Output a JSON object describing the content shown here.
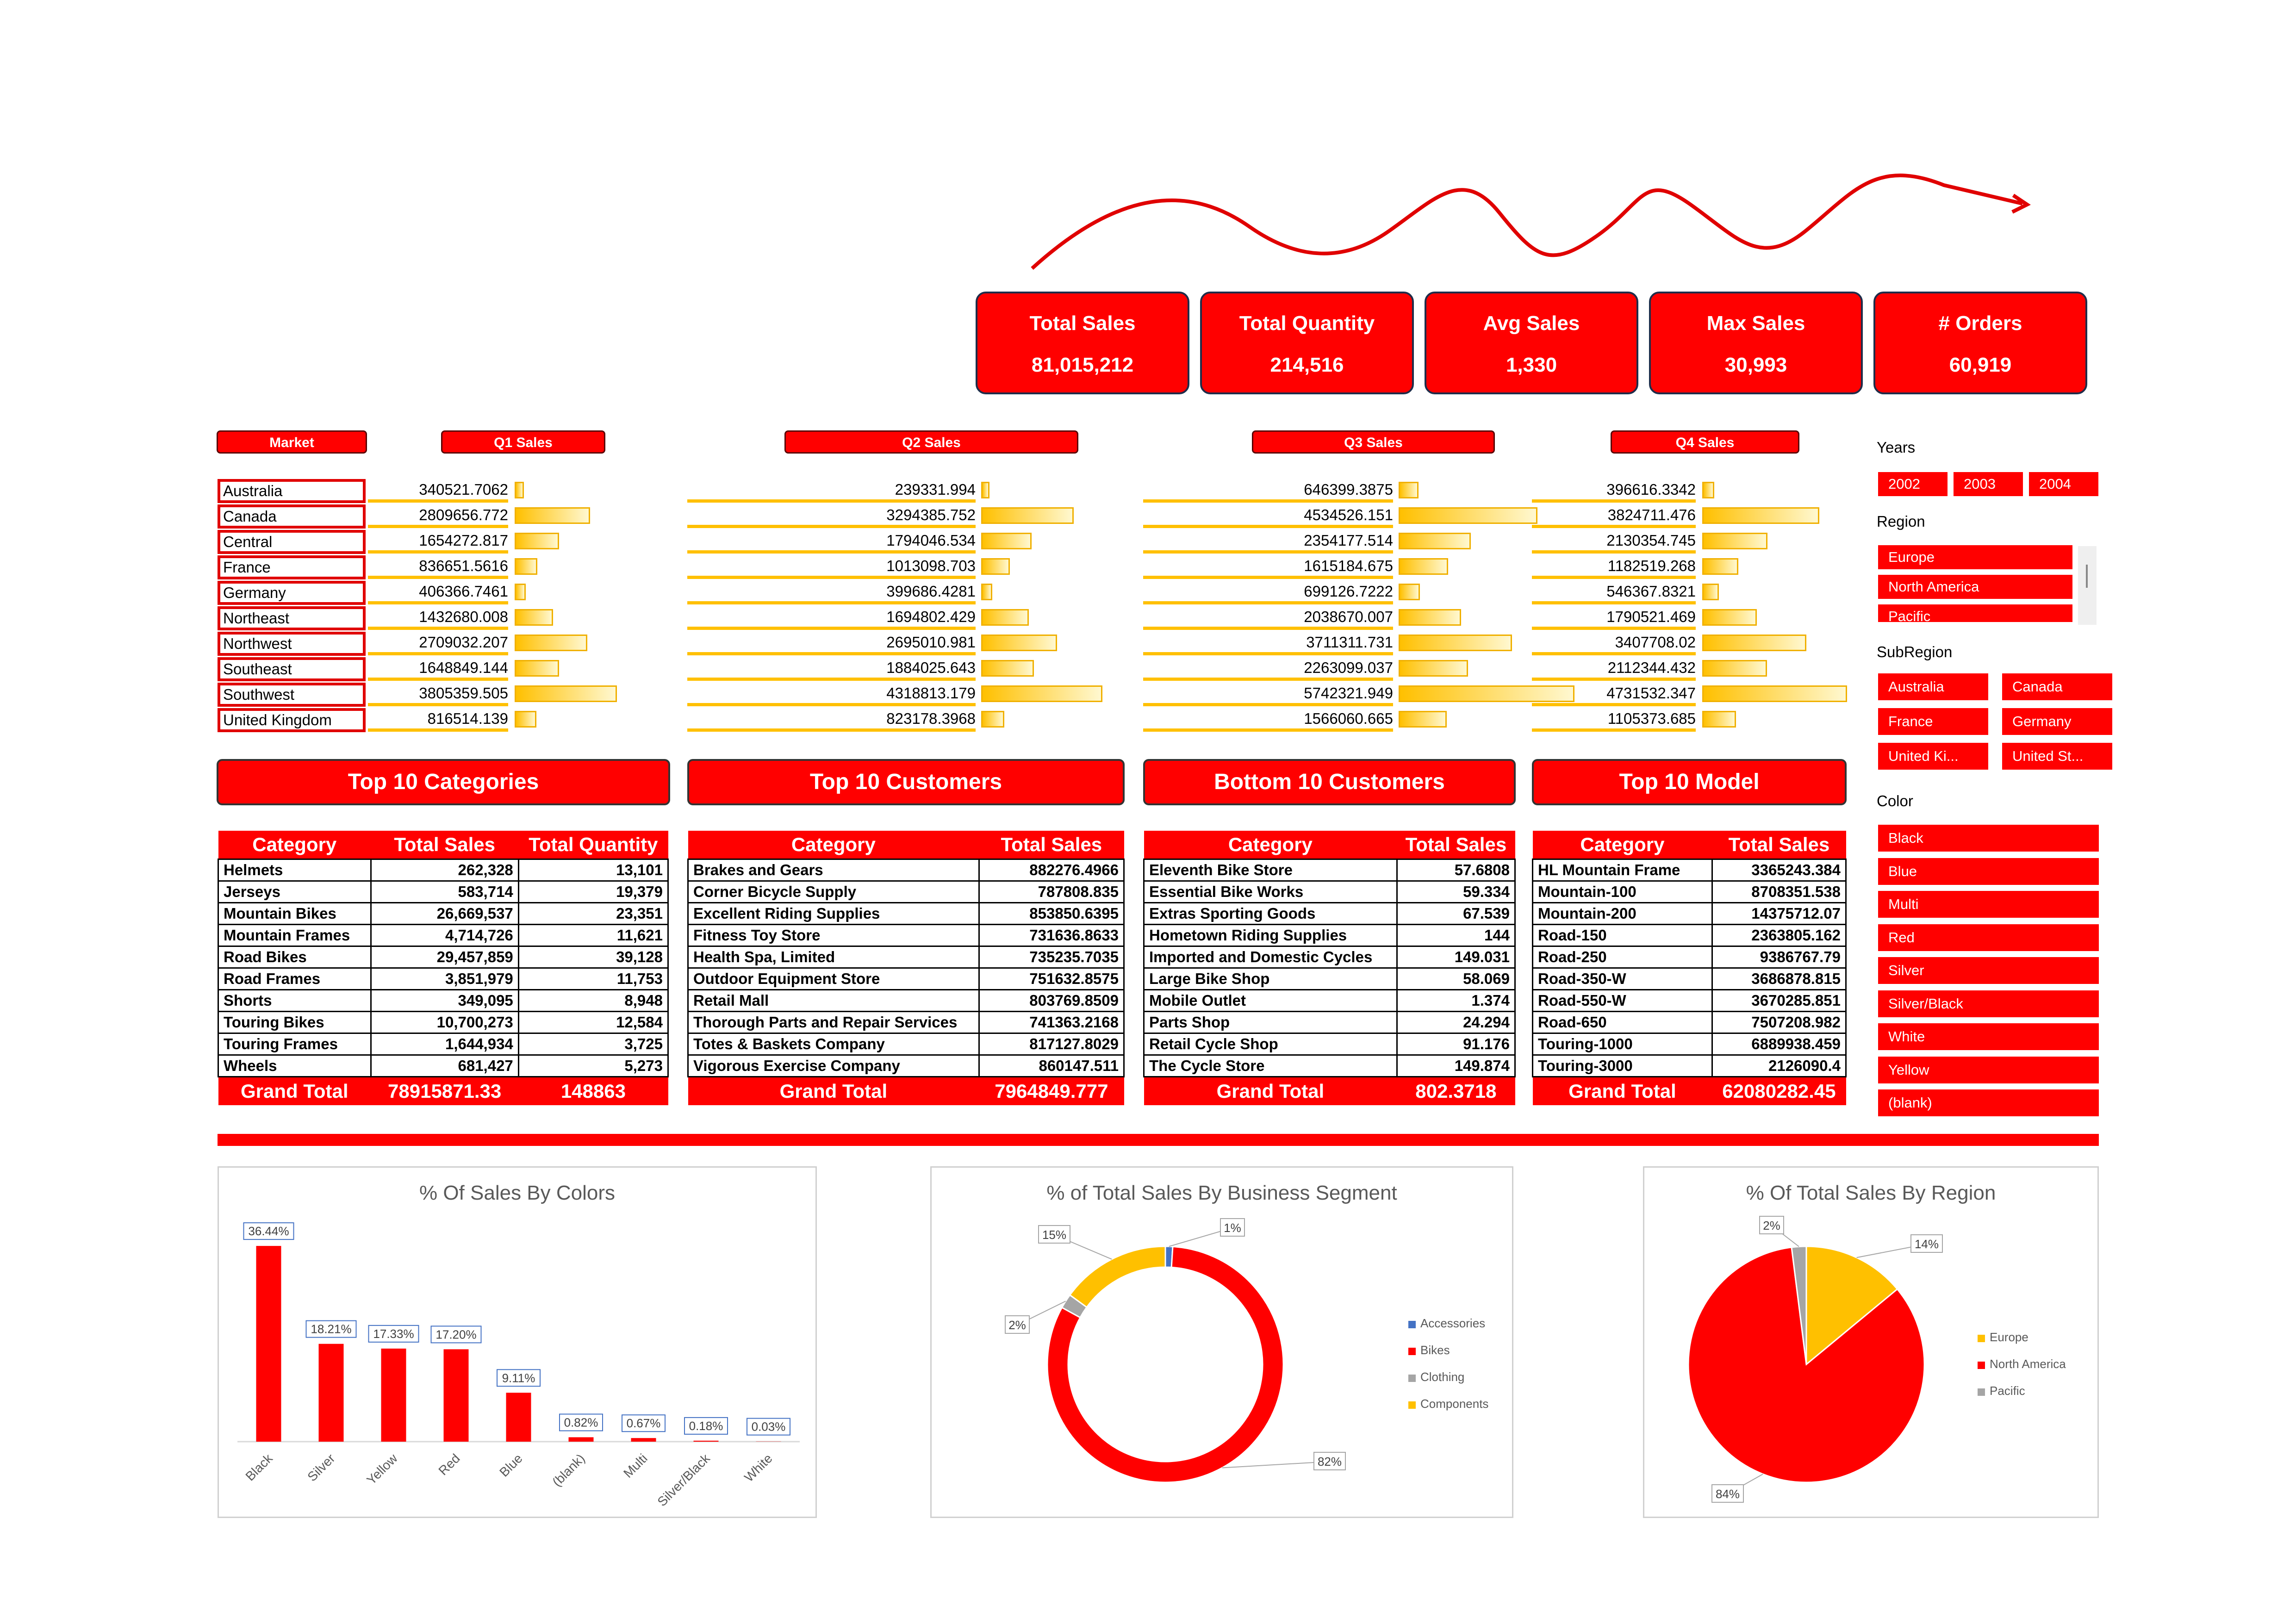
{
  "kpis": [
    {
      "title": "Total Sales",
      "value": "81,015,212"
    },
    {
      "title": "Total Quantity",
      "value": "214,516"
    },
    {
      "title": "Avg Sales",
      "value": "1,330"
    },
    {
      "title": "Max Sales",
      "value": "30,993"
    },
    {
      "title": "# Orders",
      "value": "60,919"
    }
  ],
  "quarter_table": {
    "headers": {
      "market": "Market",
      "q1": "Q1 Sales",
      "q2": "Q2 Sales",
      "q3": "Q3 Sales",
      "q4": "Q4 Sales"
    },
    "markets": [
      "Australia",
      "Canada",
      "Central",
      "France",
      "Germany",
      "Northeast",
      "Northwest",
      "Southeast",
      "Southwest",
      "United Kingdom"
    ],
    "q1": [
      "340521.7062",
      "2809656.772",
      "1654272.817",
      "836651.5616",
      "406366.7461",
      "1432680.008",
      "2709032.207",
      "1648849.144",
      "3805359.505",
      "816514.139"
    ],
    "q2": [
      "239331.994",
      "3294385.752",
      "1794046.534",
      "1013098.703",
      "399686.4281",
      "1694802.429",
      "2695010.981",
      "1884025.643",
      "4318813.179",
      "823178.3968"
    ],
    "q3": [
      "646399.3875",
      "4534526.151",
      "2354177.514",
      "1615184.675",
      "699126.7222",
      "2038670.007",
      "3711311.731",
      "2263099.037",
      "5742321.949",
      "1566060.665"
    ],
    "q4": [
      "396616.3342",
      "3824711.476",
      "2130354.745",
      "1182519.268",
      "546367.8321",
      "1790521.469",
      "3407708.02",
      "2112344.432",
      "4731532.347",
      "1105373.685"
    ]
  },
  "sections": {
    "categories": "Top 10 Categories",
    "customers": "Top 10 Customers",
    "bottom": "Bottom 10 Customers",
    "model": "Top 10 Model"
  },
  "table_categories": {
    "headers": [
      "Category",
      "Total Sales",
      "Total Quantity"
    ],
    "rows": [
      [
        "Helmets",
        "262,328",
        "13,101"
      ],
      [
        "Jerseys",
        "583,714",
        "19,379"
      ],
      [
        "Mountain Bikes",
        "26,669,537",
        "23,351"
      ],
      [
        "Mountain Frames",
        "4,714,726",
        "11,621"
      ],
      [
        "Road Bikes",
        "29,457,859",
        "39,128"
      ],
      [
        "Road Frames",
        "3,851,979",
        "11,753"
      ],
      [
        "Shorts",
        "349,095",
        "8,948"
      ],
      [
        "Touring Bikes",
        "10,700,273",
        "12,584"
      ],
      [
        "Touring Frames",
        "1,644,934",
        "3,725"
      ],
      [
        "Wheels",
        "681,427",
        "5,273"
      ]
    ],
    "grand": [
      "Grand Total",
      "78915871.33",
      "148863"
    ]
  },
  "table_customers": {
    "headers": [
      "Category",
      "Total Sales"
    ],
    "rows": [
      [
        "Brakes and Gears",
        "882276.4966"
      ],
      [
        "Corner Bicycle Supply",
        "787808.835"
      ],
      [
        "Excellent Riding Supplies",
        "853850.6395"
      ],
      [
        "Fitness Toy Store",
        "731636.8633"
      ],
      [
        "Health Spa, Limited",
        "735235.7035"
      ],
      [
        "Outdoor Equipment Store",
        "751632.8575"
      ],
      [
        "Retail Mall",
        "803769.8509"
      ],
      [
        "Thorough Parts and Repair Services",
        "741363.2168"
      ],
      [
        "Totes & Baskets Company",
        "817127.8029"
      ],
      [
        "Vigorous Exercise Company",
        "860147.511"
      ]
    ],
    "grand": [
      "Grand Total",
      "7964849.777"
    ]
  },
  "table_bottom": {
    "headers": [
      "Category",
      "Total Sales"
    ],
    "rows": [
      [
        "Eleventh Bike Store",
        "57.6808"
      ],
      [
        "Essential Bike Works",
        "59.334"
      ],
      [
        "Extras Sporting Goods",
        "67.539"
      ],
      [
        "Hometown Riding Supplies",
        "144"
      ],
      [
        "Imported and Domestic Cycles",
        "149.031"
      ],
      [
        "Large Bike Shop",
        "58.069"
      ],
      [
        "Mobile Outlet",
        "1.374"
      ],
      [
        "Parts Shop",
        "24.294"
      ],
      [
        "Retail Cycle Shop",
        "91.176"
      ],
      [
        "The Cycle Store",
        "149.874"
      ]
    ],
    "grand": [
      "Grand Total",
      "802.3718"
    ]
  },
  "table_model": {
    "headers": [
      "Category",
      "Total Sales"
    ],
    "rows": [
      [
        "HL Mountain Frame",
        "3365243.384"
      ],
      [
        "Mountain-100",
        "8708351.538"
      ],
      [
        "Mountain-200",
        "14375712.07"
      ],
      [
        "Road-150",
        "2363805.162"
      ],
      [
        "Road-250",
        "9386767.79"
      ],
      [
        "Road-350-W",
        "3686878.815"
      ],
      [
        "Road-550-W",
        "3670285.851"
      ],
      [
        "Road-650",
        "7507208.982"
      ],
      [
        "Touring-1000",
        "6889938.459"
      ],
      [
        "Touring-3000",
        "2126090.4"
      ]
    ],
    "grand": [
      "Grand Total",
      "62080282.45"
    ]
  },
  "slicers": {
    "years_label": "Years",
    "years": [
      "2002",
      "2003",
      "2004"
    ],
    "region_label": "Region",
    "regions": [
      "Europe",
      "North America",
      "Pacific"
    ],
    "subregion_label": "SubRegion",
    "subregions": [
      "Australia",
      "Canada",
      "France",
      "Germany",
      "United Ki...",
      "United St..."
    ],
    "color_label": "Color",
    "colors": [
      "Black",
      "Blue",
      "Multi",
      "Red",
      "Silver",
      "Silver/Black",
      "White",
      "Yellow",
      "(blank)"
    ]
  },
  "theme": {
    "accent": "#ff0000",
    "bar": "#ffc000",
    "gray": "#a5a5a5",
    "blue": "#4472c4"
  },
  "chart_data": [
    {
      "type": "bar",
      "title": "% Of Sales By Colors",
      "categories": [
        "Black",
        "Silver",
        "Yellow",
        "Red",
        "Blue",
        "(blank)",
        "Multi",
        "Silver/Black",
        "White"
      ],
      "values": [
        36.44,
        18.21,
        17.33,
        17.2,
        9.11,
        0.82,
        0.67,
        0.18,
        0.03
      ],
      "labels": [
        "36.44%",
        "18.21%",
        "17.33%",
        "17.20%",
        "9.11%",
        "0.82%",
        "0.67%",
        "0.18%",
        "0.03%"
      ],
      "ylim": [
        0,
        40
      ],
      "grid": false
    },
    {
      "type": "pie",
      "title": "% of Total Sales By Business Segment",
      "categories": [
        "Accessories",
        "Bikes",
        "Clothing",
        "Components"
      ],
      "values": [
        1,
        82,
        2,
        15
      ],
      "labels": [
        "1%",
        "82%",
        "2%",
        "15%"
      ],
      "legend": "right"
    },
    {
      "type": "pie",
      "title": "% Of Total Sales By Region",
      "categories": [
        "Europe",
        "North America",
        "Pacific"
      ],
      "values": [
        14,
        84,
        2
      ],
      "labels": [
        "14%",
        "84%",
        "2%"
      ],
      "legend": "right"
    }
  ]
}
